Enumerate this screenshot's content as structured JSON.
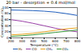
{
  "chart_data": {
    "type": "line",
    "title": "20 bar - desorption + 0.4 mol/mol",
    "x_label": "Temperature (°C)",
    "y_label": "Concentration (%)",
    "x": [
      200,
      300,
      400,
      500,
      600,
      700,
      800
    ],
    "xlim": [
      200,
      800
    ],
    "xticks": [
      200,
      300,
      400,
      500,
      600,
      700,
      800
    ],
    "ylim": [
      0,
      100
    ],
    "yticks": [
      0,
      20,
      40,
      60,
      80,
      100
    ],
    "grid": true,
    "series": [
      {
        "name": "H₂",
        "color": "#1f5fbf",
        "values": [
          92,
          91,
          90,
          88,
          85,
          80,
          74
        ]
      },
      {
        "name": "CO",
        "color": "#9b3fa8",
        "values": [
          60,
          55,
          48,
          40,
          32,
          25,
          20
        ]
      },
      {
        "name": "CH₄",
        "color": "#e8a21a",
        "values": [
          10,
          12,
          15,
          20,
          25,
          30,
          33
        ]
      },
      {
        "name": "CO₂",
        "color": "#3a9a3a",
        "values": [
          5,
          7,
          10,
          14,
          18,
          22,
          26
        ]
      }
    ]
  }
}
